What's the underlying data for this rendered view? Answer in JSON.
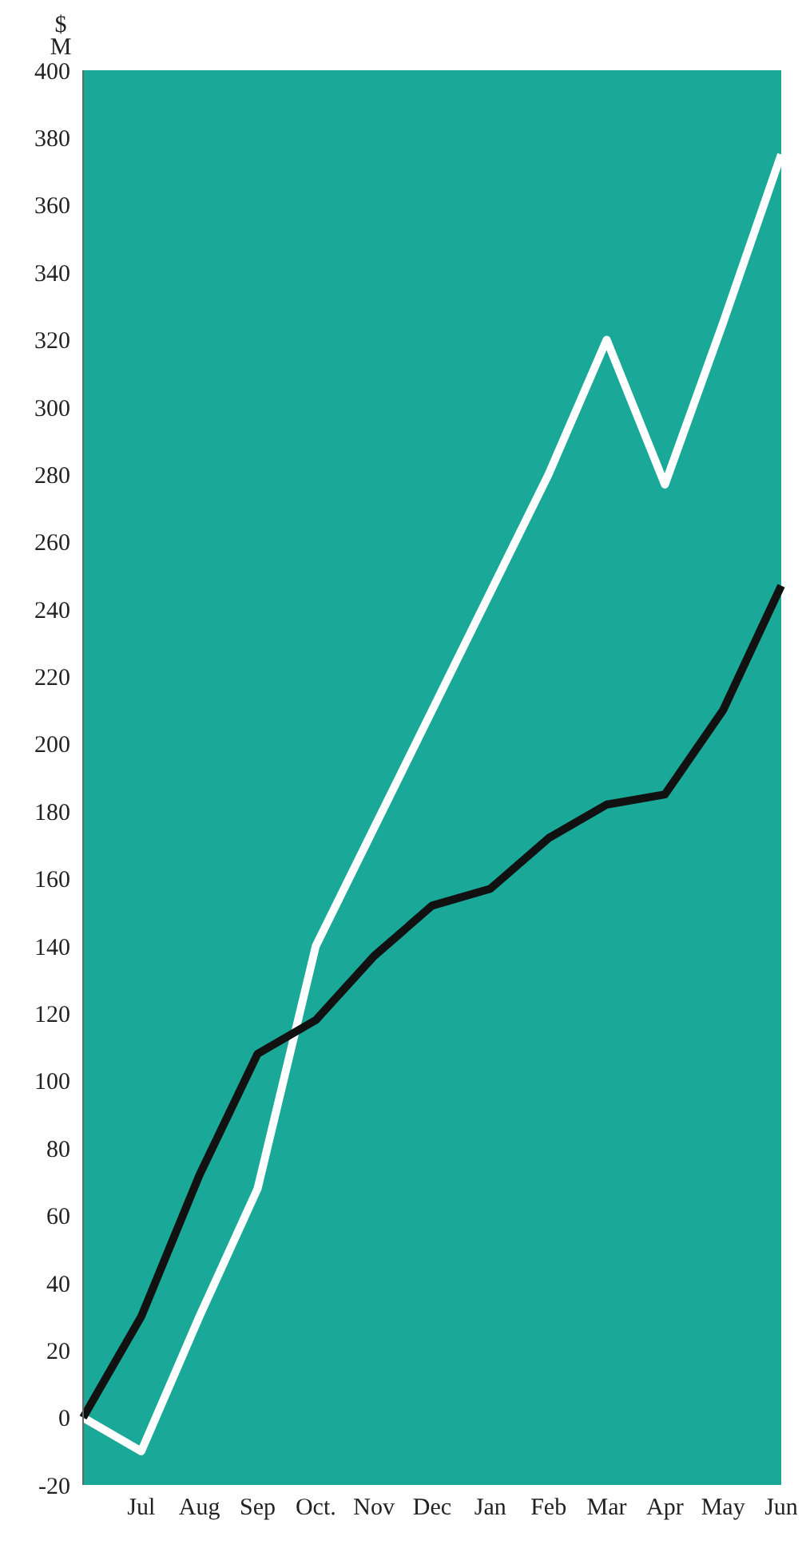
{
  "chart_data": {
    "type": "line",
    "ylabel": "$ M",
    "categories": [
      null,
      "Jul",
      "Aug",
      "Sep",
      "Oct.",
      "Nov",
      "Dec",
      "Jan",
      "Feb",
      "Mar",
      "Apr",
      "May",
      "Jun"
    ],
    "series": [
      {
        "color": "#ffffff",
        "values": [
          0,
          -10,
          30,
          68,
          140,
          175,
          210,
          245,
          280,
          320,
          277,
          325,
          375
        ]
      },
      {
        "color": "#111111",
        "values": [
          0,
          30,
          72,
          108,
          118,
          137,
          152,
          157,
          172,
          182,
          185,
          210,
          247
        ]
      }
    ],
    "ylim": [
      -20,
      400
    ],
    "yticks": [
      -20,
      0,
      20,
      40,
      60,
      80,
      100,
      120,
      140,
      160,
      180,
      200,
      220,
      240,
      260,
      280,
      300,
      320,
      340,
      360,
      380,
      400
    ],
    "grid": false,
    "legend": false,
    "marker": "none",
    "line_style": "solid"
  }
}
